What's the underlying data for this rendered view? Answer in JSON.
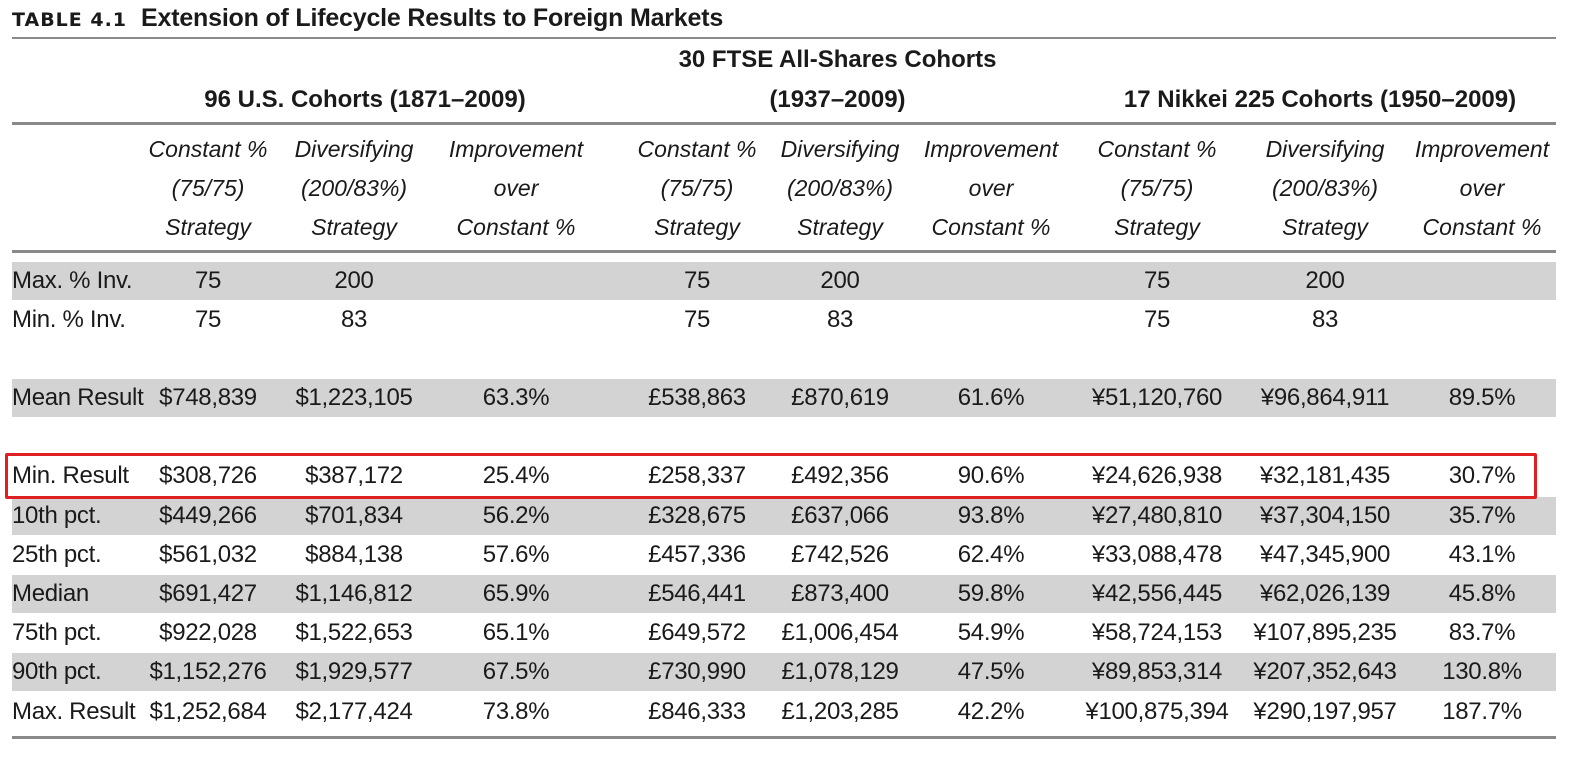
{
  "title": {
    "tag": "TABLE 4.1",
    "text": "Extension of Lifecycle Results to Foreign Markets"
  },
  "groups": [
    {
      "line1": "",
      "line2": "96 U.S. Cohorts (1871–2009)"
    },
    {
      "line1": "30 FTSE All-Shares Cohorts",
      "line2": "(1937–2009)"
    },
    {
      "line1": "",
      "line2": "17 Nikkei 225 Cohorts (1950–2009)"
    }
  ],
  "subheaders": [
    [
      "Constant %",
      "(75/75)",
      "Strategy"
    ],
    [
      "Diversifying",
      "(200/83%)",
      "Strategy"
    ],
    [
      "Improvement",
      "over",
      "Constant %"
    ],
    [
      "Constant %",
      "(75/75)",
      "Strategy"
    ],
    [
      "Diversifying",
      "(200/83%)",
      "Strategy"
    ],
    [
      "Improvement",
      "over",
      "Constant %"
    ],
    [
      "Constant %",
      "(75/75)",
      "Strategy"
    ],
    [
      "Diversifying",
      "(200/83%)",
      "Strategy"
    ],
    [
      "Improvement",
      "over",
      "Constant %"
    ]
  ],
  "rows": [
    {
      "label": "Max. % Inv.",
      "values": [
        "75",
        "200",
        "",
        "75",
        "200",
        "",
        "75",
        "200",
        ""
      ],
      "shaded": true
    },
    {
      "label": "Min. % Inv.",
      "values": [
        "75",
        "83",
        "",
        "75",
        "83",
        "",
        "75",
        "83",
        ""
      ],
      "shaded": false
    },
    {
      "label": "Mean Result",
      "values": [
        "$748,839",
        "$1,223,105",
        "63.3%",
        "£538,863",
        "£870,619",
        "61.6%",
        "¥51,120,760",
        "¥96,864,911",
        "89.5%"
      ],
      "shaded": true
    },
    {
      "label": "Min. Result",
      "values": [
        "$308,726",
        "$387,172",
        "25.4%",
        "£258,337",
        "£492,356",
        "90.6%",
        "¥24,626,938",
        "¥32,181,435",
        "30.7%"
      ],
      "shaded": false,
      "highlighted": true
    },
    {
      "label": "10th pct.",
      "values": [
        "$449,266",
        "$701,834",
        "56.2%",
        "£328,675",
        "£637,066",
        "93.8%",
        "¥27,480,810",
        "¥37,304,150",
        "35.7%"
      ],
      "shaded": true
    },
    {
      "label": "25th pct.",
      "values": [
        "$561,032",
        "$884,138",
        "57.6%",
        "£457,336",
        "£742,526",
        "62.4%",
        "¥33,088,478",
        "¥47,345,900",
        "43.1%"
      ],
      "shaded": false
    },
    {
      "label": "Median",
      "values": [
        "$691,427",
        "$1,146,812",
        "65.9%",
        "£546,441",
        "£873,400",
        "59.8%",
        "¥42,556,445",
        "¥62,026,139",
        "45.8%"
      ],
      "shaded": true
    },
    {
      "label": "75th pct.",
      "values": [
        "$922,028",
        "$1,522,653",
        "65.1%",
        "£649,572",
        "£1,006,454",
        "54.9%",
        "¥58,724,153",
        "¥107,895,235",
        "83.7%"
      ],
      "shaded": false
    },
    {
      "label": "90th pct.",
      "values": [
        "$1,152,276",
        "$1,929,577",
        "67.5%",
        "£730,990",
        "£1,078,129",
        "47.5%",
        "¥89,853,314",
        "¥207,352,643",
        "130.8%"
      ],
      "shaded": true
    },
    {
      "label": "Max. Result",
      "values": [
        "$1,252,684",
        "$2,177,424",
        "73.8%",
        "£846,333",
        "£1,203,285",
        "42.2%",
        "¥100,875,394",
        "¥290,197,957",
        "187.7%"
      ],
      "shaded": false
    }
  ],
  "colors": {
    "shade": "#d3d3d3",
    "rule": "#8a8a8a",
    "highlight": "#e02020",
    "text": "#1a1a1a"
  }
}
